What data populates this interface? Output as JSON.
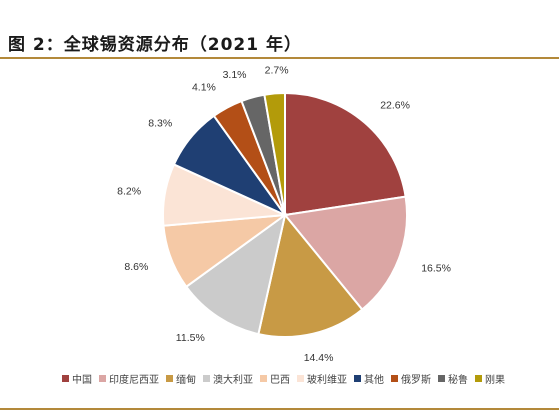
{
  "page_title": "图 2：全球锡资源分布（2021 年）",
  "chart_data": {
    "type": "pie",
    "title": "",
    "slices": [
      {
        "label": "中国",
        "value": 22.6,
        "display": "22.6%",
        "color": "#a0413f"
      },
      {
        "label": "印度尼西亚",
        "value": 16.5,
        "display": "16.5%",
        "color": "#dba6a4"
      },
      {
        "label": "缅甸",
        "value": 14.4,
        "display": "14.4%",
        "color": "#c89a45"
      },
      {
        "label": "澳大利亚",
        "value": 11.5,
        "display": "11.5%",
        "color": "#cbcbcb"
      },
      {
        "label": "巴西",
        "value": 8.6,
        "display": "8.6%",
        "color": "#f5c9a6"
      },
      {
        "label": "玻利维亚",
        "value": 8.2,
        "display": "8.2%",
        "color": "#fbe4d6"
      },
      {
        "label": "其他",
        "value": 8.3,
        "display": "8.3%",
        "color": "#1f3f73"
      },
      {
        "label": "俄罗斯",
        "value": 4.1,
        "display": "4.1%",
        "color": "#b34f17"
      },
      {
        "label": "秘鲁",
        "value": 3.1,
        "display": "3.1%",
        "color": "#666666"
      },
      {
        "label": "刚果",
        "value": 2.7,
        "display": "2.7%",
        "color": "#b39b0a"
      }
    ],
    "legend_position": "bottom"
  }
}
